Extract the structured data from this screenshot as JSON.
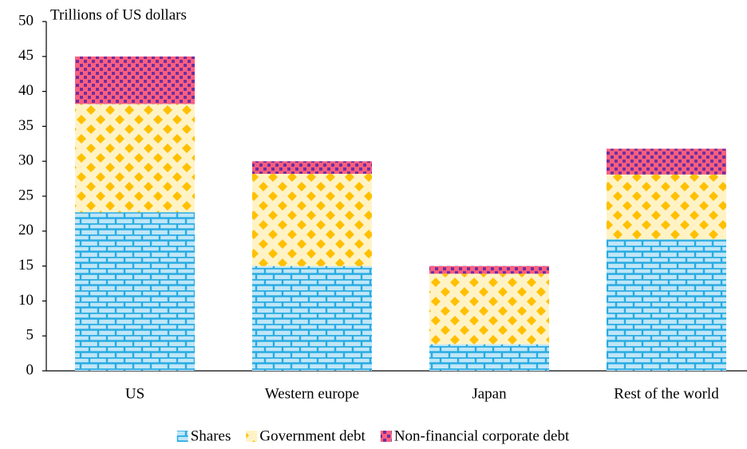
{
  "chart_data": {
    "type": "stacked-bar",
    "y_label": "Trillions of US dollars",
    "categories": [
      "US",
      "Western europe",
      "Japan",
      "Rest of the world"
    ],
    "series": [
      {
        "name": "Shares",
        "color": "#29abe2",
        "values": [
          22.7,
          15.0,
          3.8,
          18.8
        ]
      },
      {
        "name": "Government debt",
        "color": "#ffc000",
        "values": [
          15.5,
          13.2,
          10.1,
          9.3
        ]
      },
      {
        "name": "Non-financial corporate debt",
        "color": "#ff5f7e",
        "values": [
          6.8,
          1.8,
          1.1,
          3.7
        ]
      }
    ],
    "ylim": [
      0,
      50
    ],
    "yticks": [
      0,
      5,
      10,
      15,
      20,
      25,
      30,
      35,
      40,
      45,
      50
    ],
    "legend": "bottom"
  }
}
